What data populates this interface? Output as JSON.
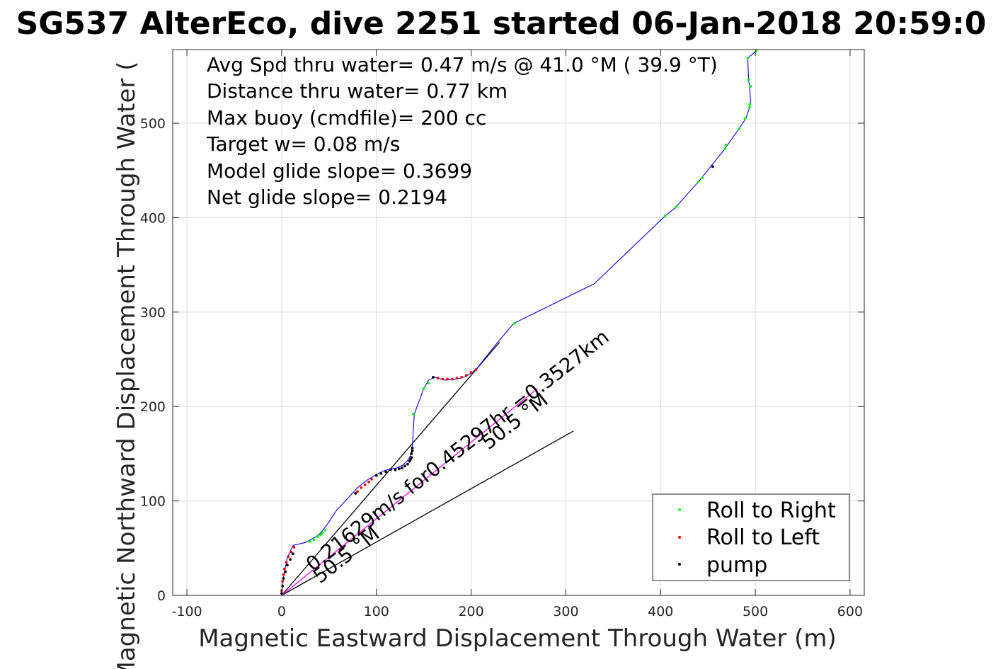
{
  "chart_data": {
    "type": "scatter",
    "title": "SG537 AlterEco, dive 2251 started 06-Jan-2018 20:59:0",
    "xlabel": "Magnetic Eastward Displacement Through Water (m)",
    "ylabel": "Magnetic Northward Displacement Through Water (",
    "xlim": [
      -115,
      615
    ],
    "ylim": [
      0,
      578
    ],
    "xticks": [
      -100,
      0,
      100,
      200,
      300,
      400,
      500,
      600
    ],
    "yticks": [
      0,
      100,
      200,
      300,
      400,
      500
    ],
    "xtick_labels": [
      "-100",
      "0",
      "100",
      "200",
      "300",
      "400",
      "500",
      "600"
    ],
    "ytick_labels": [
      "0",
      "100",
      "200",
      "300",
      "400",
      "500"
    ],
    "grid": true,
    "info_lines": [
      "Avg Spd thru water=  0.47 m/s @  41.0 °M ( 39.9 °T)",
      "Distance thru water=  0.77 km",
      "Max buoy (cmdfile)= 200 cc",
      "Target w= 0.08 m/s",
      "Model glide slope= 0.3699",
      "Net glide slope= 0.2194"
    ],
    "annotations": {
      "current_text": "0.21629m/s for0.45297hr =0.3527km",
      "heading_text_1": "50.5 °M",
      "heading_text_2": "50.5 °M"
    },
    "track": {
      "name": "track",
      "color": "#0000ff",
      "x": [
        0,
        2,
        6,
        12,
        25,
        36,
        41,
        48,
        58,
        70,
        80,
        90,
        100,
        108,
        115,
        122,
        128,
        133,
        136,
        137,
        138,
        140,
        150,
        155,
        162,
        172,
        185,
        195,
        205,
        228,
        245,
        330,
        405,
        415,
        440,
        444,
        468,
        470,
        482,
        490,
        494,
        495,
        494,
        493,
        492,
        493,
        497,
        502
      ],
      "y": [
        0,
        20,
        40,
        53,
        56,
        62,
        66,
        75,
        90,
        103,
        114,
        122,
        128,
        132,
        134,
        135,
        138,
        143,
        148,
        153,
        159,
        192,
        219,
        228,
        231,
        228,
        229,
        232,
        239,
        268,
        288,
        330,
        402,
        410,
        438,
        443,
        473,
        476,
        493,
        505,
        517,
        522,
        539,
        545,
        568,
        570,
        573,
        578
      ]
    },
    "current_line": {
      "name": "current",
      "color": "#ff00ff",
      "x": [
        0,
        270
      ],
      "y": [
        0,
        219
      ]
    },
    "glide_lines": [
      {
        "x": [
          0,
          230
        ],
        "y": [
          0,
          268
        ]
      },
      {
        "x": [
          0,
          308
        ],
        "y": [
          0,
          174
        ]
      }
    ],
    "series": [
      {
        "name": "Roll to Right",
        "color": "#00ff00",
        "x": [
          30,
          34,
          38,
          41,
          43,
          46,
          139,
          150,
          155,
          246,
          405,
          416,
          440,
          444,
          468,
          469,
          483,
          489,
          494,
          494,
          495,
          493,
          492,
          501
        ],
        "y": [
          57,
          59,
          62,
          64,
          66,
          69,
          192,
          219,
          225,
          288,
          402,
          411,
          438,
          442,
          473,
          477,
          494,
          505,
          517,
          520,
          539,
          546,
          569,
          576
        ]
      },
      {
        "name": "Roll to Left",
        "color": "#ff0000",
        "x": [
          0,
          1,
          2,
          3,
          5,
          7,
          10,
          13,
          80,
          84,
          88,
          92,
          95,
          165,
          170,
          175,
          180,
          185,
          190,
          195,
          200,
          205
        ],
        "y": [
          5,
          15,
          22,
          28,
          35,
          41,
          46,
          51,
          110,
          114,
          117,
          120,
          123,
          230,
          229,
          229,
          229,
          230,
          231,
          233,
          236,
          239
        ]
      },
      {
        "name": "pump",
        "color": "#000000",
        "x": [
          0,
          1,
          2,
          4,
          6,
          9,
          12,
          78,
          100,
          105,
          110,
          115,
          120,
          124,
          127,
          130,
          133,
          135,
          136,
          137,
          137,
          138,
          138,
          160,
          455
        ],
        "y": [
          2,
          10,
          18,
          25,
          32,
          38,
          44,
          108,
          127,
          129,
          131,
          133,
          133,
          134,
          135,
          137,
          139,
          142,
          144,
          146,
          150,
          153,
          156,
          231,
          454
        ]
      }
    ],
    "legend": {
      "position": "bottom-right",
      "entries": [
        "Roll to Right",
        "Roll to Left",
        "pump"
      ]
    }
  }
}
